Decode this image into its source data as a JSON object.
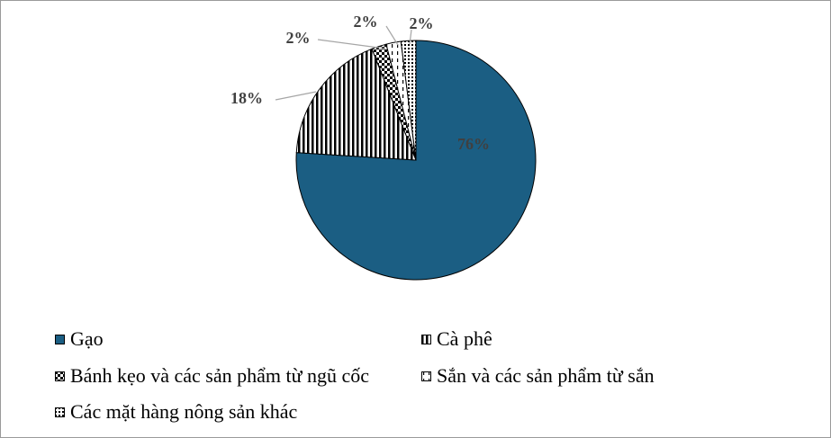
{
  "chart_data": {
    "type": "pie",
    "title": "",
    "legend_position": "bottom",
    "labels": [
      "Gạo",
      "Cà phê",
      "Bánh kẹo và các sản phẩm từ ngũ cốc",
      "Sắn và các sản phẩm từ sắn",
      "Các mặt hàng nông sản khác"
    ],
    "values": [
      76,
      18,
      2,
      2,
      2
    ],
    "value_labels": [
      "76%",
      "18%",
      "2%",
      "2%",
      "2%"
    ],
    "fills": [
      "solid",
      "vertical-stripes",
      "checker",
      "dashed-vertical",
      "dotted"
    ],
    "colors": {
      "gao": "#1b5e83",
      "pattern": "#000000",
      "label_text": "#404040",
      "leader_line": "#a6a6a6"
    }
  }
}
